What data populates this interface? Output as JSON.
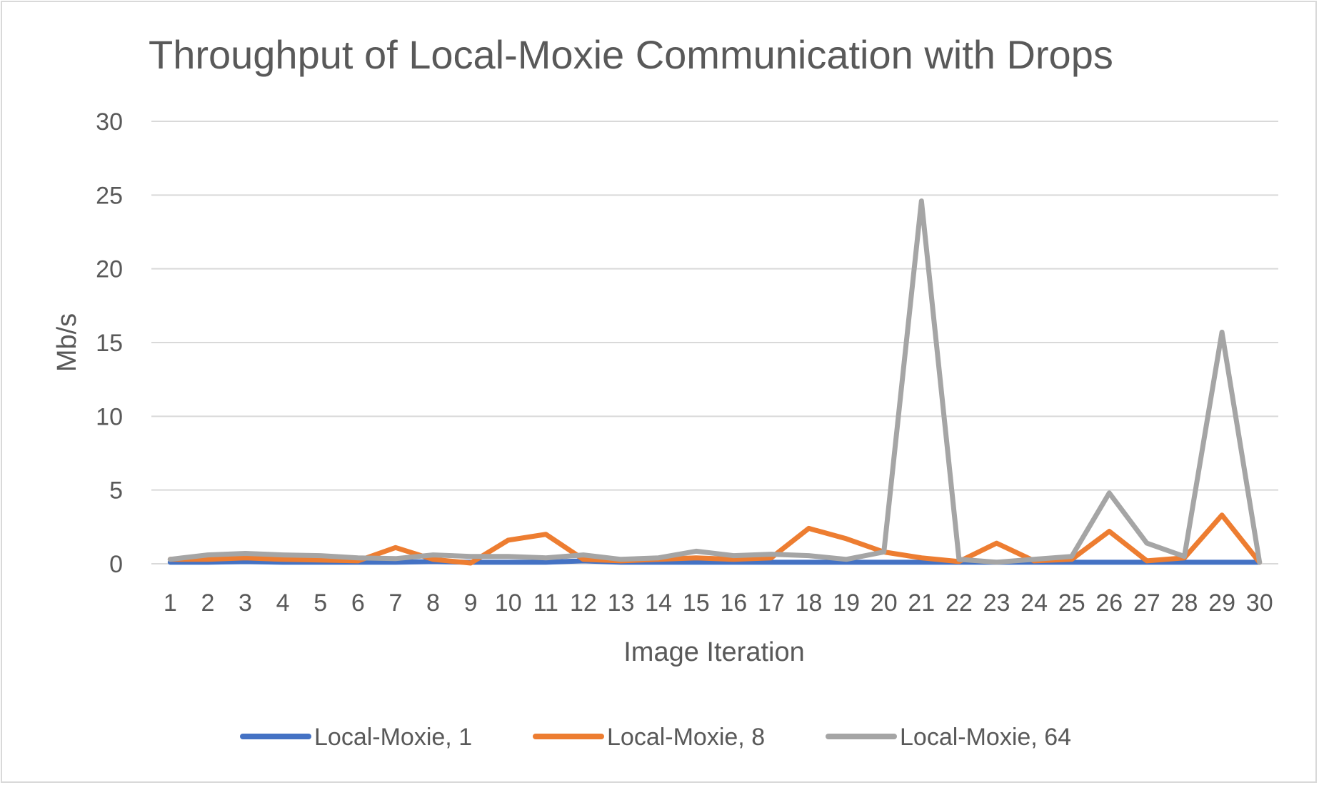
{
  "chart_data": {
    "type": "line",
    "title": "Throughput of Local-Moxie Communication with Drops",
    "xlabel": "Image Iteration",
    "ylabel": "Mb/s",
    "ylim": [
      0,
      30
    ],
    "yticks": [
      0,
      5,
      10,
      15,
      20,
      25,
      30
    ],
    "grid": true,
    "legend_position": "bottom",
    "categories": [
      "1",
      "2",
      "3",
      "4",
      "5",
      "6",
      "7",
      "8",
      "9",
      "10",
      "11",
      "12",
      "13",
      "14",
      "15",
      "16",
      "17",
      "18",
      "19",
      "20",
      "21",
      "22",
      "23",
      "24",
      "25",
      "26",
      "27",
      "28",
      "29",
      "30"
    ],
    "series": [
      {
        "name": "Local-Moxie, 1",
        "color": "#4472c4",
        "values": [
          0.1,
          0.1,
          0.15,
          0.1,
          0.1,
          0.1,
          0.1,
          0.15,
          0.1,
          0.1,
          0.1,
          0.2,
          0.1,
          0.1,
          0.1,
          0.1,
          0.1,
          0.1,
          0.1,
          0.1,
          0.1,
          0.1,
          0.1,
          0.1,
          0.1,
          0.1,
          0.1,
          0.1,
          0.1,
          0.1
        ]
      },
      {
        "name": "Local-Moxie, 8",
        "color": "#ed7d31",
        "values": [
          0.3,
          0.3,
          0.4,
          0.3,
          0.25,
          0.2,
          1.1,
          0.3,
          0.05,
          1.6,
          2.0,
          0.3,
          0.2,
          0.3,
          0.4,
          0.3,
          0.4,
          2.4,
          1.7,
          0.8,
          0.4,
          0.15,
          1.4,
          0.2,
          0.3,
          2.2,
          0.2,
          0.4,
          3.3,
          0.1
        ]
      },
      {
        "name": "Local-Moxie, 64",
        "color": "#a5a5a5",
        "values": [
          0.3,
          0.6,
          0.7,
          0.6,
          0.55,
          0.4,
          0.35,
          0.6,
          0.5,
          0.5,
          0.4,
          0.6,
          0.3,
          0.4,
          0.85,
          0.55,
          0.65,
          0.55,
          0.3,
          0.8,
          24.6,
          0.3,
          0.1,
          0.3,
          0.5,
          4.8,
          1.4,
          0.5,
          15.7,
          0.1
        ]
      }
    ]
  }
}
